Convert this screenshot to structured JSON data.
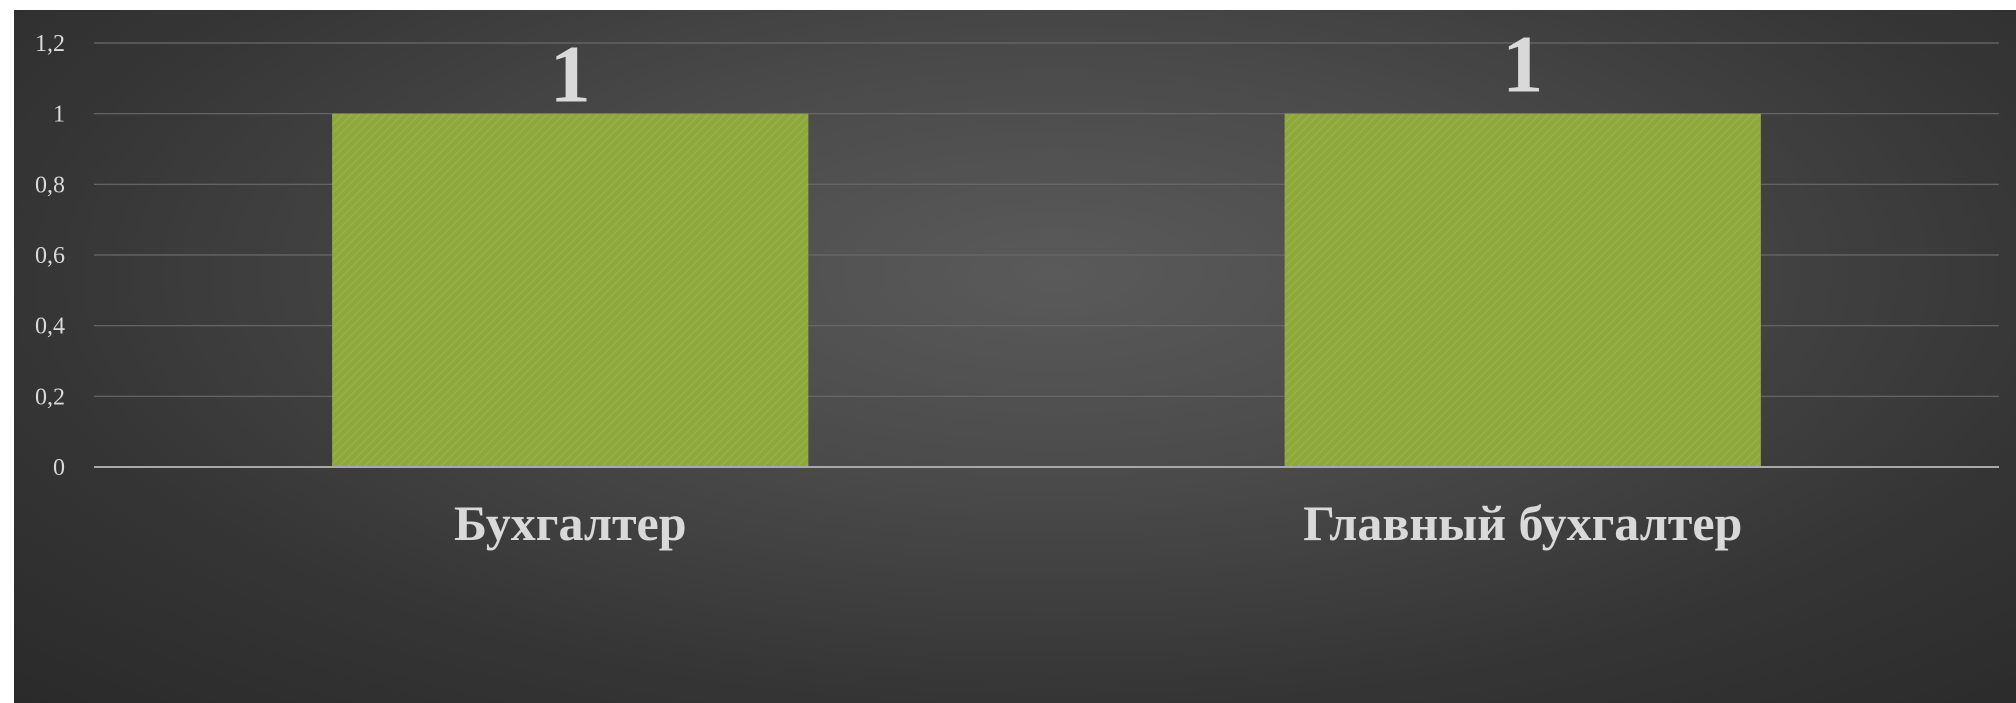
{
  "chart_data": {
    "type": "bar",
    "categories": [
      "Бухгалтер",
      "Главный бухгалтер"
    ],
    "values": [
      1,
      1
    ],
    "data_labels": [
      "1",
      "1"
    ],
    "y_ticks": [
      "0",
      "0,2",
      "0,4",
      "0,6",
      "0,8",
      "1",
      "1,2"
    ],
    "ylim": [
      0,
      1.2
    ],
    "grid": true,
    "legend": "none",
    "bar_color": "#8fa83e"
  }
}
